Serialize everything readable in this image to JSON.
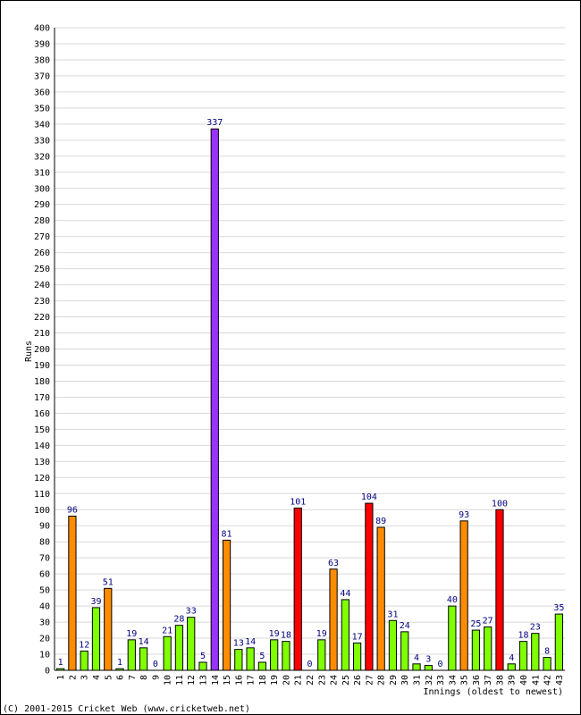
{
  "chart_data": {
    "type": "bar",
    "ylabel": "Runs",
    "xlabel": "Innings (oldest to newest)",
    "ylim": [
      0,
      400
    ],
    "ytick_step": 10,
    "grid": true,
    "categories": [
      "1",
      "2",
      "3",
      "4",
      "5",
      "6",
      "7",
      "8",
      "9",
      "10",
      "11",
      "12",
      "13",
      "14",
      "15",
      "16",
      "17",
      "18",
      "19",
      "20",
      "21",
      "22",
      "23",
      "24",
      "25",
      "26",
      "27",
      "28",
      "29",
      "30",
      "31",
      "32",
      "33",
      "34",
      "35",
      "36",
      "37",
      "38",
      "39",
      "40",
      "41",
      "42",
      "43"
    ],
    "values": [
      1,
      96,
      12,
      39,
      51,
      1,
      19,
      14,
      0,
      21,
      28,
      33,
      5,
      337,
      81,
      13,
      14,
      5,
      19,
      18,
      101,
      0,
      19,
      63,
      44,
      17,
      104,
      89,
      31,
      24,
      4,
      3,
      0,
      40,
      93,
      25,
      27,
      100,
      4,
      18,
      23,
      8,
      35
    ],
    "colors": {
      "under_50": "#80ff00",
      "fifty": "#ff8c00",
      "hundred": "#ff0000",
      "triple_hundred": "#9933ff",
      "grid": "#d9d9d9",
      "label": "#000080"
    }
  },
  "footer": {
    "credit": "(C) 2001-2015 Cricket Web (www.cricketweb.net)"
  }
}
